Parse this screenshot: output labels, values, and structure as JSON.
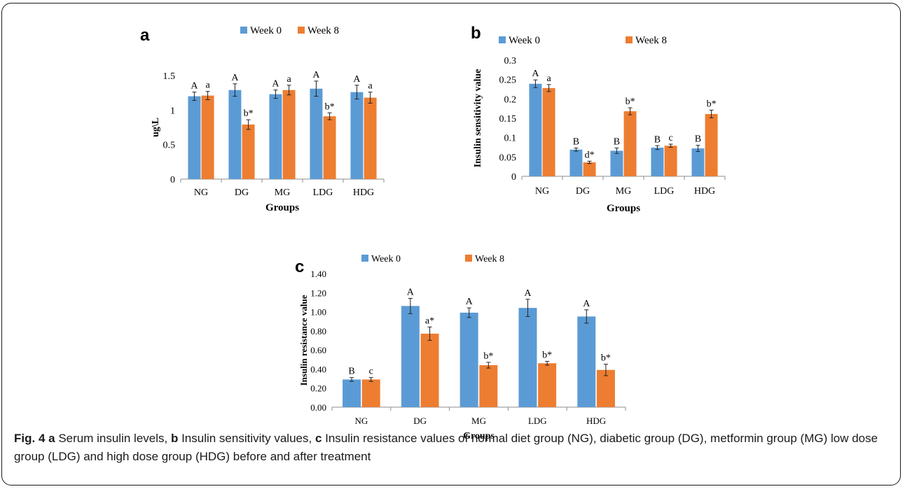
{
  "colors": {
    "week0": "#5b9bd5",
    "week8": "#ed7d31",
    "axis": "#8c8c8c",
    "text": "#000000"
  },
  "chart_data": [
    {
      "panel": "a",
      "type": "bar",
      "ylabel": "ug\\L",
      "xlabel": "Groups",
      "ylim": [
        0,
        1.5
      ],
      "yticks": [
        "0",
        "0.5",
        "1",
        "1.5"
      ],
      "categories": [
        "NG",
        "DG",
        "MG",
        "LDG",
        "HDG"
      ],
      "series": [
        {
          "name": "Week 0",
          "values": [
            1.2,
            1.29,
            1.23,
            1.31,
            1.26
          ],
          "errors": [
            0.06,
            0.09,
            0.06,
            0.11,
            0.1
          ],
          "labels": [
            "A",
            "A",
            "A",
            "A",
            "A"
          ]
        },
        {
          "name": "Week 8",
          "values": [
            1.21,
            0.79,
            1.29,
            0.91,
            1.18
          ],
          "errors": [
            0.06,
            0.07,
            0.07,
            0.05,
            0.08
          ],
          "labels": [
            "a",
            "b*",
            "a",
            "b*",
            "a"
          ]
        }
      ],
      "legend": "top"
    },
    {
      "panel": "b",
      "type": "bar",
      "ylabel": "Insulin sensitivity value",
      "xlabel": "Groups",
      "ylim": [
        0,
        0.3
      ],
      "yticks": [
        "0",
        "0.05",
        "0.1",
        "0.15",
        "0.2",
        "0.25",
        "0.3"
      ],
      "categories": [
        "NG",
        "DG",
        "MG",
        "LDG",
        "HDG"
      ],
      "series": [
        {
          "name": "Week 0",
          "values": [
            0.239,
            0.069,
            0.066,
            0.074,
            0.072
          ],
          "errors": [
            0.01,
            0.004,
            0.007,
            0.005,
            0.008
          ],
          "labels": [
            "A",
            "B",
            "B",
            "B",
            "B"
          ]
        },
        {
          "name": "Week 8",
          "values": [
            0.228,
            0.036,
            0.168,
            0.079,
            0.161
          ],
          "errors": [
            0.009,
            0.003,
            0.009,
            0.004,
            0.01
          ],
          "labels": [
            "a",
            "d*",
            "b*",
            "c",
            "b*"
          ]
        }
      ],
      "legend": "top"
    },
    {
      "panel": "c",
      "type": "bar",
      "ylabel": "Insulin resistance value",
      "xlabel": "Groups",
      "ylim": [
        0,
        1.4
      ],
      "yticks": [
        "0.00",
        "0.20",
        "0.40",
        "0.60",
        "0.80",
        "1.00",
        "1.20",
        "1.40"
      ],
      "categories": [
        "NG",
        "DG",
        "MG",
        "LDG",
        "HDG"
      ],
      "series": [
        {
          "name": "Week 0",
          "values": [
            0.29,
            1.06,
            0.99,
            1.04,
            0.95
          ],
          "errors": [
            0.02,
            0.08,
            0.05,
            0.09,
            0.07
          ],
          "labels": [
            "B",
            "A",
            "A",
            "A",
            "A"
          ]
        },
        {
          "name": "Week 8",
          "values": [
            0.29,
            0.77,
            0.44,
            0.46,
            0.39
          ],
          "errors": [
            0.02,
            0.07,
            0.03,
            0.02,
            0.06
          ],
          "labels": [
            "c",
            "a*",
            "b*",
            "b*",
            "b*"
          ]
        }
      ],
      "legend": "top"
    }
  ],
  "caption": {
    "label": "Fig. 4",
    "a": "a",
    "a_text": " Serum insulin levels, ",
    "b": "b",
    "b_text": " Insulin sensitivity values, ",
    "c": "c",
    "c_text": " Insulin resistance values of normal diet group (NG), diabetic group (DG), metformin group (MG) low dose group (LDG) and high dose group (HDG) before and after treatment"
  }
}
